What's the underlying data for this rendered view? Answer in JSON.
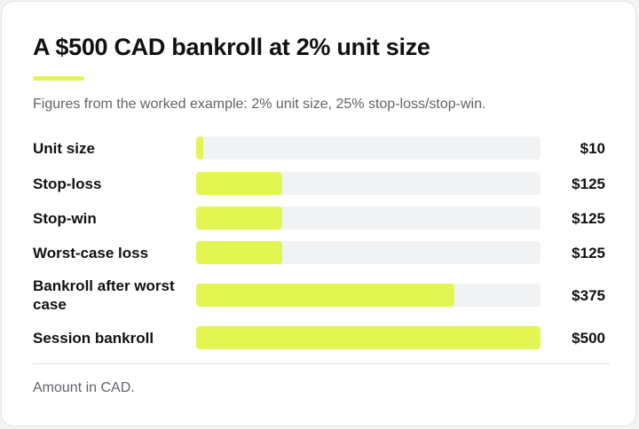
{
  "chart_data": {
    "type": "bar",
    "orientation": "horizontal",
    "title": "A $500 CAD bankroll at 2% unit size",
    "subtitle": "Figures from the worked example: 2% unit size, 25% stop-loss/stop-win.",
    "footnote": "Amount in CAD.",
    "categories": [
      "Unit size",
      "Stop-loss",
      "Stop-win",
      "Worst-case loss",
      "Bankroll after worst case",
      "Session bankroll"
    ],
    "values": [
      10,
      125,
      125,
      125,
      375,
      500
    ],
    "value_labels": [
      "$10",
      "$125",
      "$125",
      "$125",
      "$375",
      "$500"
    ],
    "xlim": [
      0,
      500
    ],
    "colors": {
      "bar": "#e3f552",
      "track": "#f1f2f4",
      "accent": "#e0f553",
      "text": "#111111",
      "muted": "#5f6368"
    }
  }
}
